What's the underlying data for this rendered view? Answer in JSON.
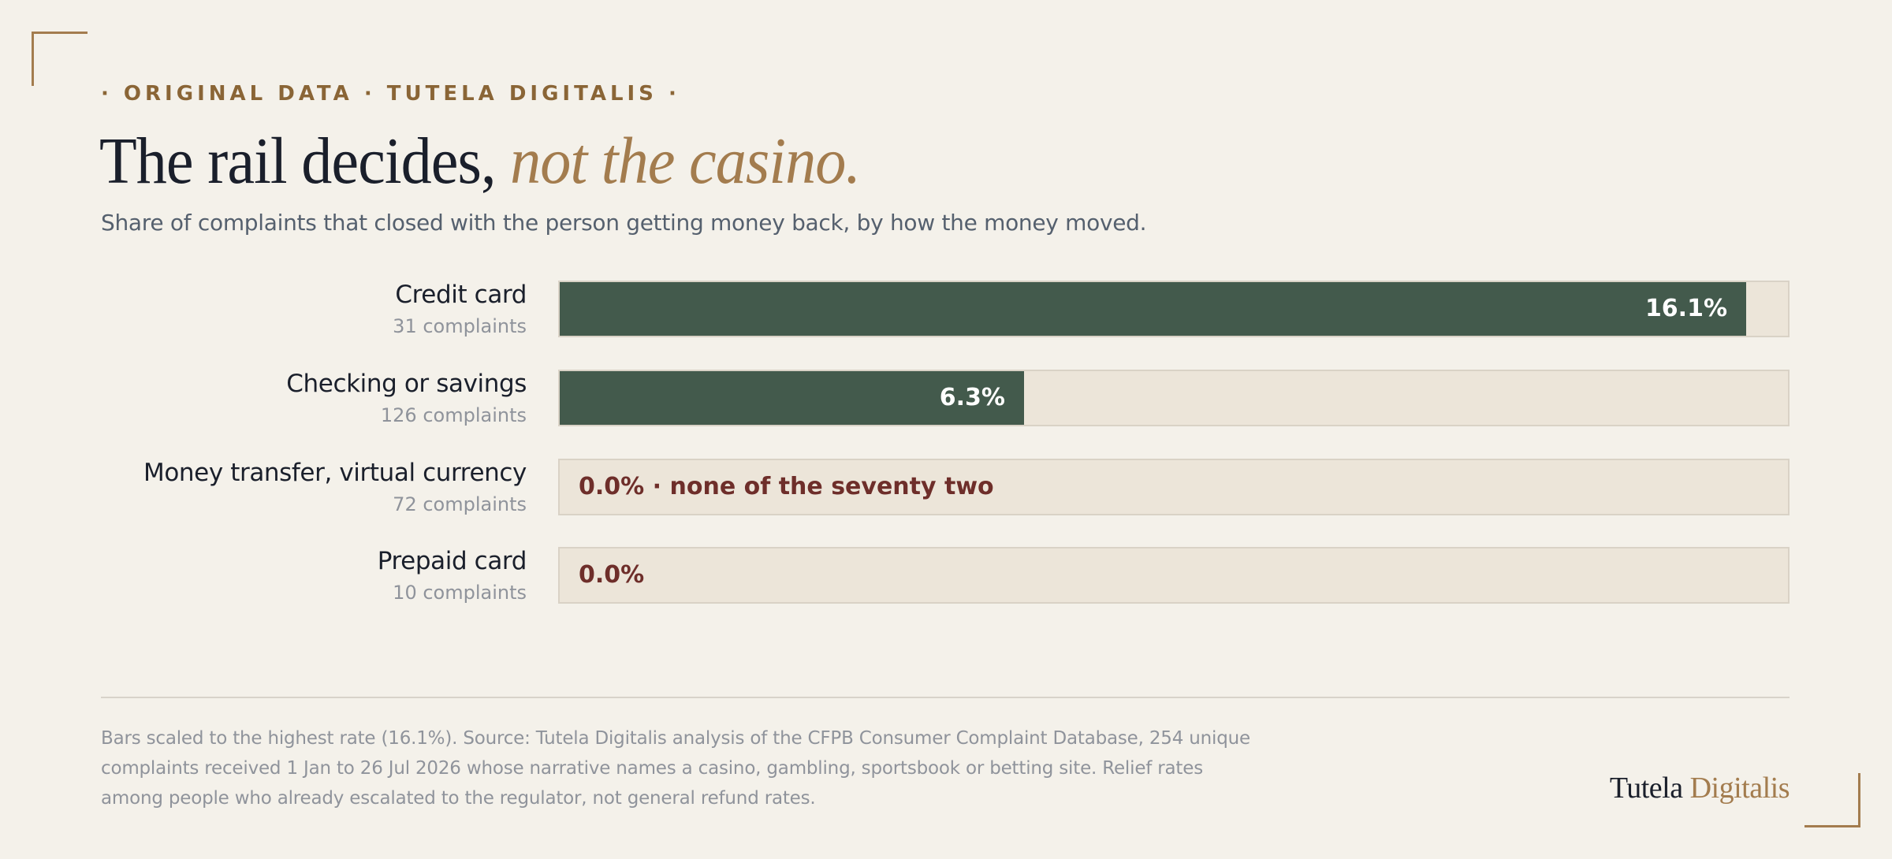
{
  "eyebrow": "· ORIGINAL DATA · TUTELA DIGITALIS ·",
  "title": {
    "main": "The rail decides,",
    "accent": "not the casino."
  },
  "subtitle": "Share of complaints that closed with the person getting money back, by how the money moved.",
  "chart_data": {
    "type": "bar",
    "orientation": "horizontal",
    "title": "The rail decides, not the casino.",
    "subtitle": "Share of complaints that closed with the person getting money back, by how the money moved.",
    "unit": "%",
    "xlim": [
      0,
      16.1
    ],
    "categories": [
      "Credit card",
      "Checking or savings",
      "Money transfer, virtual currency",
      "Prepaid card"
    ],
    "values": [
      16.1,
      6.3,
      0.0,
      0.0
    ],
    "rows": [
      {
        "category": "Credit card",
        "count_label": "31 complaints",
        "value": 16.1,
        "value_label": "16.1%"
      },
      {
        "category": "Checking or savings",
        "count_label": "126 complaints",
        "value": 6.3,
        "value_label": "6.3%"
      },
      {
        "category": "Money transfer, virtual currency",
        "count_label": "72 complaints",
        "value": 0.0,
        "value_label": "0.0% · none of the seventy two"
      },
      {
        "category": "Prepaid card",
        "count_label": "10 complaints",
        "value": 0.0,
        "value_label": "0.0%"
      }
    ],
    "grid": false,
    "legend": "none"
  },
  "colors": {
    "background": "#f4f1ea",
    "bar_fill": "#435a4c",
    "track": "#ece5d9",
    "zero_label": "#6e2e2a",
    "accent": "#a37c4e"
  },
  "footnote": "Bars scaled to the highest rate (16.1%). Source: Tutela Digitalis analysis of the CFPB Consumer Complaint Database, 254 unique complaints received 1 Jan to 26 Jul 2026 whose narrative names a casino, gambling, sportsbook or betting site. Relief rates among people who already escalated to the regulator, not general refund rates.",
  "brand": {
    "part1": "Tutela",
    "part2": "Digitalis"
  }
}
